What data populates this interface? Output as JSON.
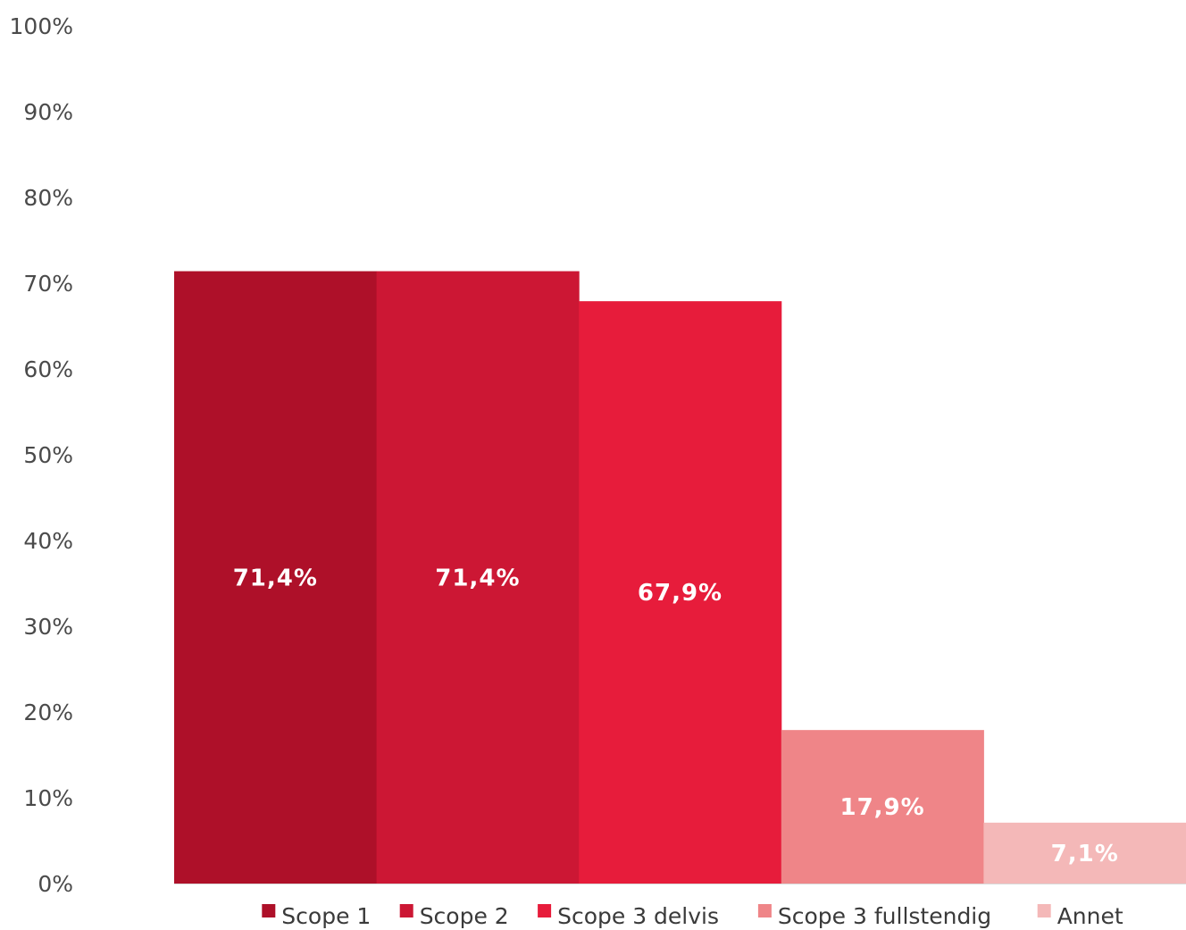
{
  "chart_data": {
    "type": "bar",
    "categories": [
      "Scope 1",
      "Scope 2",
      "Scope 3 delvis",
      "Scope 3 fullstendig",
      "Annet"
    ],
    "values": [
      71.4,
      71.4,
      67.9,
      17.9,
      7.1
    ],
    "data_labels": [
      "71,4%",
      "71,4%",
      "67,9%",
      "17,9%",
      "7,1%"
    ],
    "colors": [
      "#ae1029",
      "#cc1734",
      "#e71c3b",
      "#ef8588",
      "#f4b8b8"
    ],
    "ylim": [
      0,
      100
    ],
    "y_ticks": [
      {
        "value": 0,
        "label": "0%"
      },
      {
        "value": 10,
        "label": "10%"
      },
      {
        "value": 20,
        "label": "20%"
      },
      {
        "value": 30,
        "label": "30%"
      },
      {
        "value": 40,
        "label": "40%"
      },
      {
        "value": 50,
        "label": "50%"
      },
      {
        "value": 60,
        "label": "60%"
      },
      {
        "value": 70,
        "label": "70%"
      },
      {
        "value": 80,
        "label": "80%"
      },
      {
        "value": 90,
        "label": "90%"
      },
      {
        "value": 100,
        "label": "100%"
      }
    ],
    "grid": false,
    "legend_position": "bottom",
    "title": "",
    "xlabel": "",
    "ylabel": ""
  }
}
